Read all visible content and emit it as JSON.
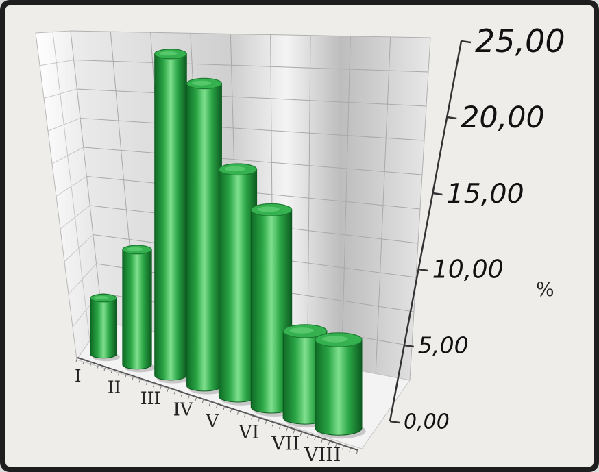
{
  "chart_data": {
    "type": "bar",
    "style": "3d-cylinder",
    "categories": [
      "I",
      "II",
      "III",
      "IV",
      "V",
      "VI",
      "VII",
      "VIII"
    ],
    "values": [
      4.5,
      9.0,
      24.5,
      22.5,
      16.5,
      14.0,
      6.0,
      6.0
    ],
    "ylabel": "%",
    "yticks": [
      "0,00",
      "5,00",
      "10,00",
      "15,00",
      "20,00",
      "25,00"
    ],
    "ylim": [
      0,
      25
    ],
    "grid": true,
    "bar_color": "#2fa84a",
    "wall_color": "#d9d9d9"
  }
}
